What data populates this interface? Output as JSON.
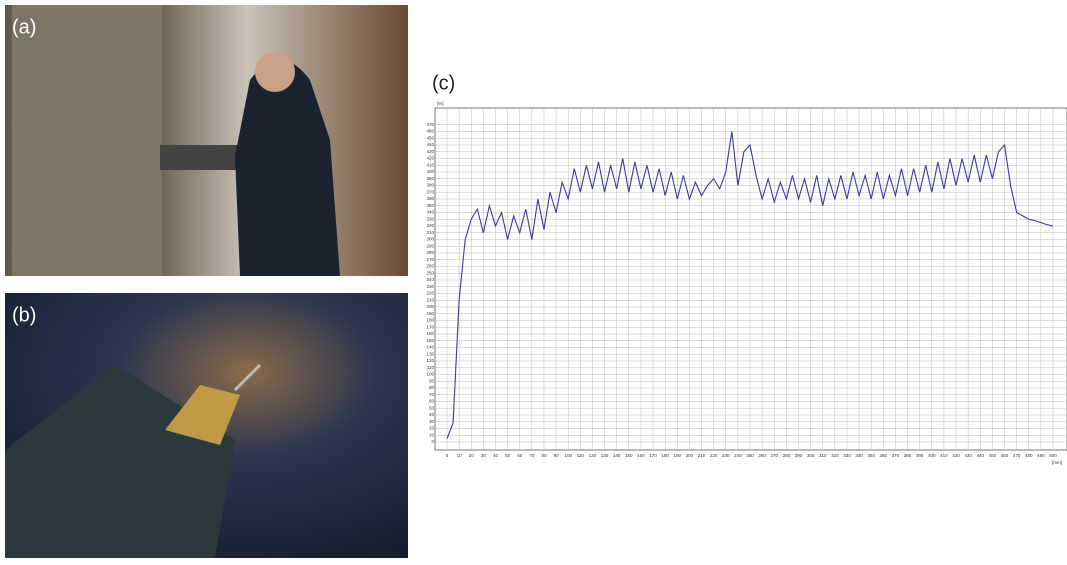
{
  "panels": {
    "a": "(a)",
    "b": "(b)",
    "c": "(c)"
  },
  "chart_data": {
    "type": "line",
    "y_label": "[%]",
    "x_label": "[mm]",
    "color": "#3a3a9a",
    "grid": true,
    "xlim": [
      0,
      500
    ],
    "ylim": [
      0,
      480
    ],
    "xticks": [
      0,
      10,
      20,
      30,
      40,
      50,
      60,
      70,
      80,
      90,
      100,
      110,
      120,
      130,
      140,
      150,
      160,
      170,
      180,
      190,
      200,
      210,
      220,
      230,
      240,
      250,
      260,
      270,
      280,
      290,
      300,
      310,
      320,
      330,
      340,
      350,
      360,
      370,
      380,
      390,
      400,
      410,
      420,
      430,
      440,
      450,
      460,
      470,
      480,
      490,
      500
    ],
    "yticks": [
      0,
      10,
      20,
      30,
      40,
      50,
      60,
      70,
      80,
      90,
      100,
      110,
      120,
      130,
      140,
      150,
      160,
      170,
      180,
      190,
      200,
      210,
      220,
      230,
      240,
      250,
      260,
      270,
      280,
      290,
      300,
      310,
      320,
      330,
      340,
      350,
      360,
      370,
      380,
      390,
      400,
      410,
      420,
      430,
      440,
      450,
      460,
      470
    ],
    "x": [
      0,
      5,
      10,
      15,
      20,
      25,
      30,
      35,
      40,
      45,
      50,
      55,
      60,
      65,
      70,
      75,
      80,
      85,
      90,
      95,
      100,
      105,
      110,
      115,
      120,
      125,
      130,
      135,
      140,
      145,
      150,
      155,
      160,
      165,
      170,
      175,
      180,
      185,
      190,
      195,
      200,
      205,
      210,
      215,
      220,
      225,
      230,
      235,
      240,
      245,
      250,
      255,
      260,
      265,
      270,
      275,
      280,
      285,
      290,
      295,
      300,
      305,
      310,
      315,
      320,
      325,
      330,
      335,
      340,
      345,
      350,
      355,
      360,
      365,
      370,
      375,
      380,
      385,
      390,
      395,
      400,
      405,
      410,
      415,
      420,
      425,
      430,
      435,
      440,
      445,
      450,
      455,
      460,
      465,
      470,
      475,
      480,
      485,
      490,
      495,
      500
    ],
    "values": [
      5,
      28,
      210,
      300,
      330,
      345,
      310,
      350,
      320,
      340,
      300,
      335,
      310,
      345,
      300,
      360,
      315,
      370,
      340,
      385,
      360,
      405,
      370,
      410,
      375,
      415,
      370,
      410,
      375,
      420,
      370,
      415,
      375,
      410,
      370,
      405,
      365,
      400,
      360,
      395,
      360,
      385,
      365,
      380,
      390,
      375,
      400,
      460,
      380,
      430,
      440,
      395,
      360,
      390,
      355,
      385,
      360,
      395,
      360,
      390,
      355,
      395,
      350,
      390,
      360,
      395,
      360,
      400,
      365,
      395,
      360,
      400,
      360,
      395,
      365,
      405,
      365,
      405,
      370,
      410,
      370,
      415,
      375,
      420,
      380,
      420,
      385,
      425,
      385,
      425,
      390,
      430,
      440,
      380,
      340,
      335,
      330,
      328,
      325,
      322,
      320
    ]
  }
}
